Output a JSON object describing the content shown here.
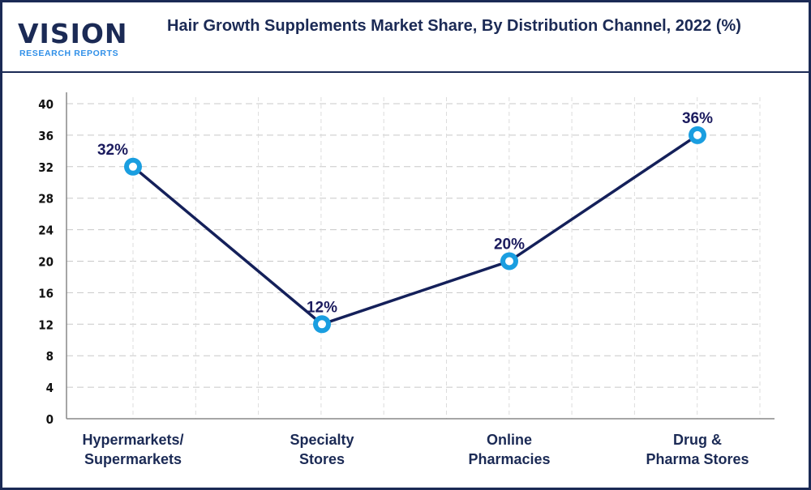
{
  "logo": {
    "word": "VISION",
    "sub": "RESEARCH REPORTS"
  },
  "chart_data": {
    "type": "line",
    "title": "Hair Growth Supplements Market Share, By Distribution Channel, 2022 (%)",
    "categories": [
      "Hypermarkets/ Supermarkets",
      "Specialty Stores",
      "Online Pharmacies",
      "Drug & Pharma Stores"
    ],
    "category_lines": [
      [
        "Hypermarkets/",
        "Supermarkets"
      ],
      [
        "Specialty",
        "Stores"
      ],
      [
        "Online",
        "Pharmacies"
      ],
      [
        "Drug &",
        "Pharma Stores"
      ]
    ],
    "values": [
      32,
      12,
      20,
      36
    ],
    "data_labels": [
      "32%",
      "12%",
      "20%",
      "36%"
    ],
    "ylim": [
      0,
      40
    ],
    "yticks": [
      "0",
      "4",
      "8",
      "12",
      "16",
      "20",
      "24",
      "28",
      "32",
      "36",
      "40"
    ],
    "grid": true,
    "colors": {
      "line": "#14205a",
      "marker_outer": "#1a9ee0",
      "marker_inner": "#ffffff",
      "frame": "#1b2a55"
    }
  }
}
